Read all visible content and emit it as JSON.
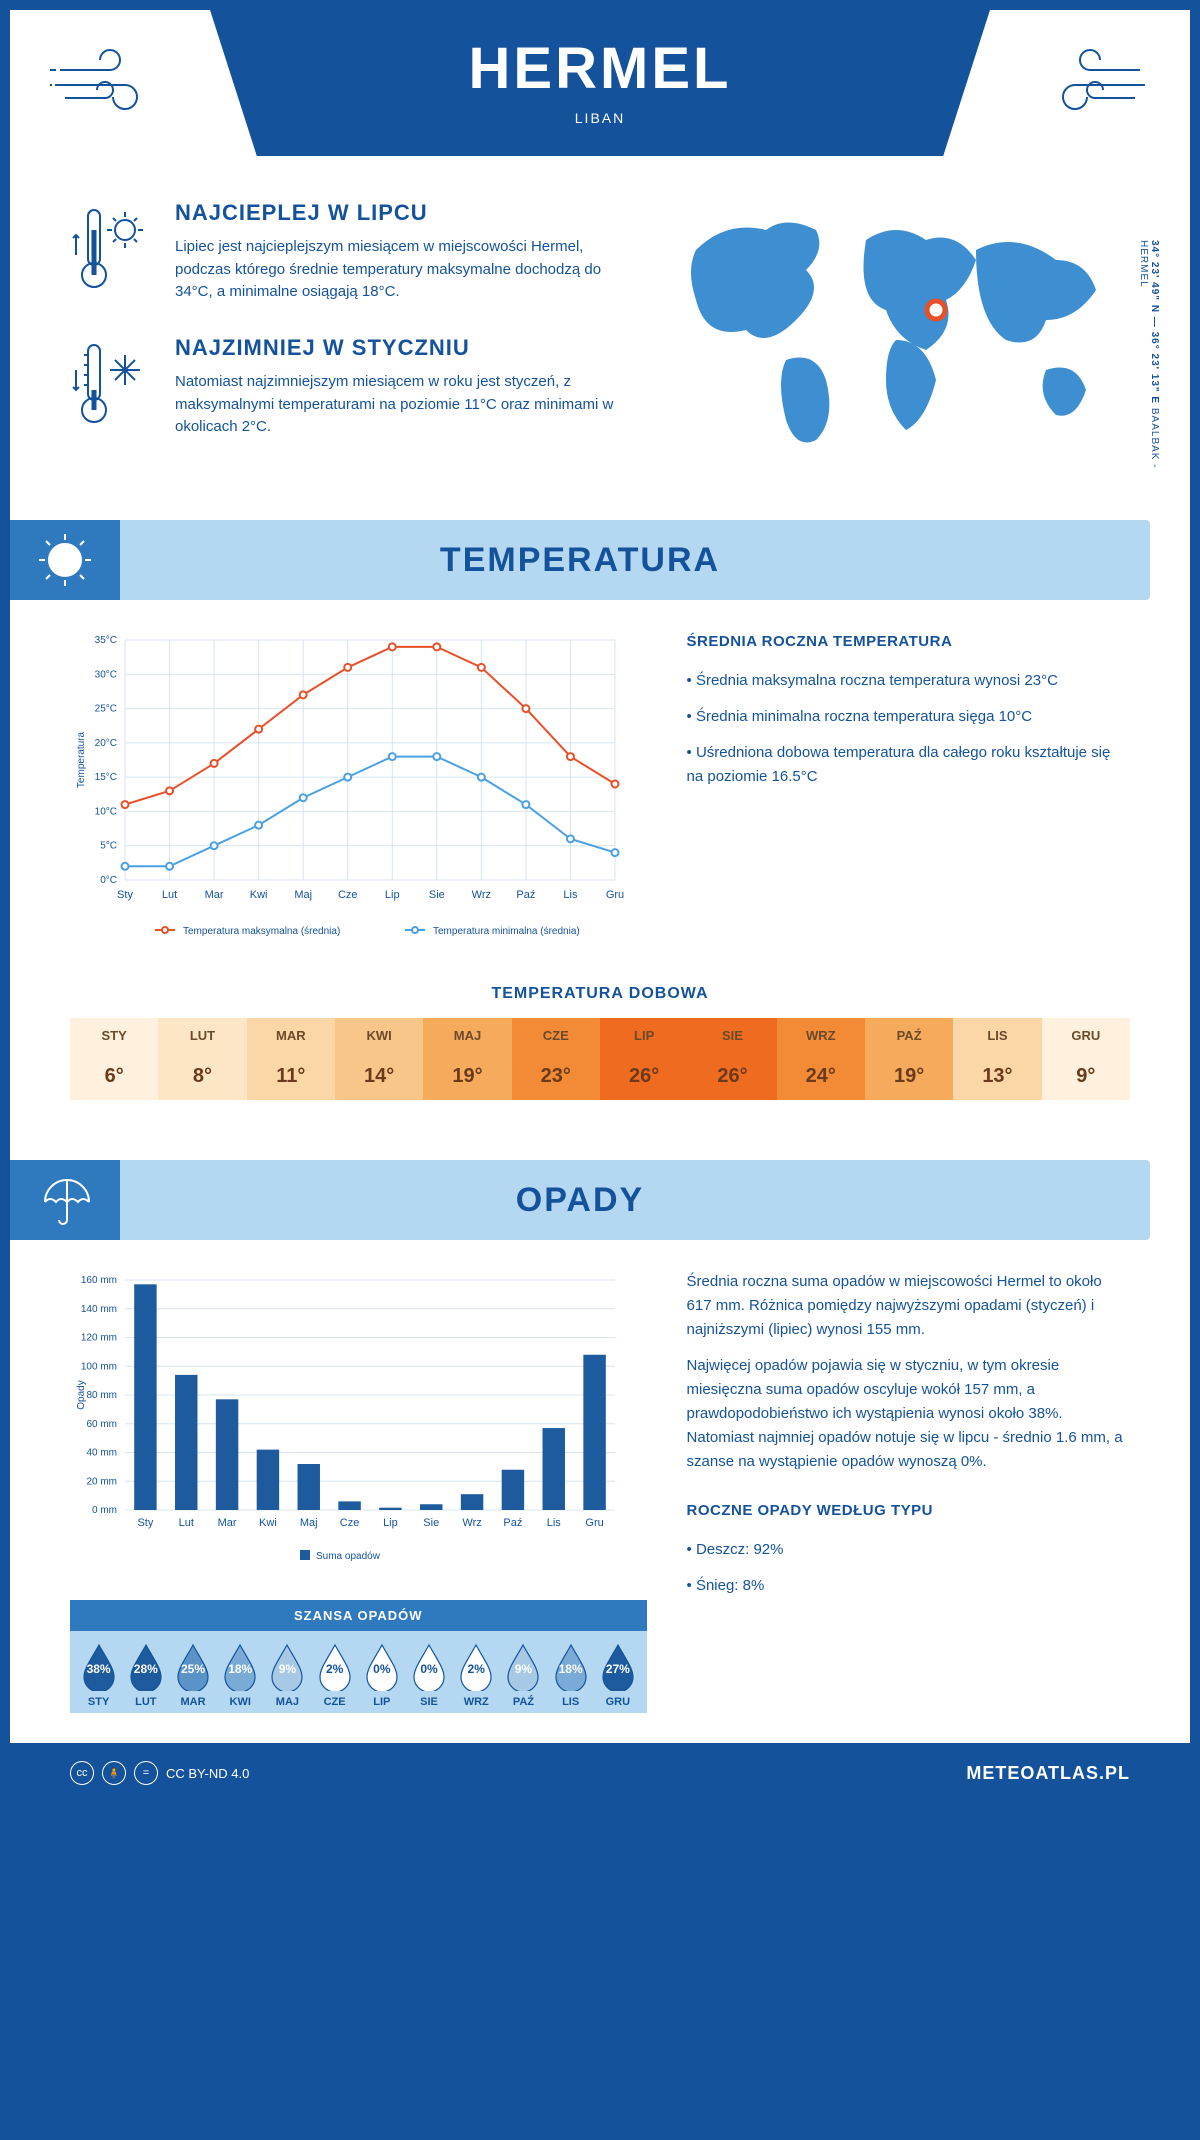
{
  "header": {
    "title": "HERMEL",
    "subtitle": "LIBAN"
  },
  "coords": {
    "line1": "34° 23' 49\" N — 36° 23' 13\" E",
    "line2": "BAALBAK - HERMEL"
  },
  "facts": {
    "hot": {
      "title": "NAJCIEPLEJ W LIPCU",
      "text": "Lipiec jest najcieplejszym miesiącem w miejscowości Hermel, podczas którego średnie temperatury maksymalne dochodzą do 34°C, a minimalne osiągają 18°C."
    },
    "cold": {
      "title": "NAJZIMNIEJ W STYCZNIU",
      "text": "Natomiast najzimniejszym miesiącem w roku jest styczeń, z maksymalnymi temperaturami na poziomie 11°C oraz minimami w okolicach 2°C."
    }
  },
  "sections": {
    "temp_title": "TEMPERATURA",
    "precip_title": "OPADY"
  },
  "temp_chart": {
    "type": "line",
    "months": [
      "Sty",
      "Lut",
      "Mar",
      "Kwi",
      "Maj",
      "Cze",
      "Lip",
      "Sie",
      "Wrz",
      "Paź",
      "Lis",
      "Gru"
    ],
    "y_label": "Temperatura",
    "ylim": [
      0,
      35
    ],
    "ytick_step": 5,
    "y_ticks": [
      "0°C",
      "5°C",
      "10°C",
      "15°C",
      "20°C",
      "25°C",
      "30°C",
      "35°C"
    ],
    "grid_color": "#d8e4f0",
    "background": "#ffffff",
    "series": [
      {
        "name": "Temperatura maksymalna (średnia)",
        "color": "#e8502a",
        "values": [
          11,
          13,
          17,
          22,
          27,
          31,
          34,
          34,
          31,
          25,
          18,
          14
        ]
      },
      {
        "name": "Temperatura minimalna (średnia)",
        "color": "#4aa0e0",
        "values": [
          2,
          2,
          5,
          8,
          12,
          15,
          18,
          18,
          15,
          11,
          6,
          4
        ]
      }
    ],
    "legend": [
      "Temperatura maksymalna (średnia)",
      "Temperatura minimalna (średnia)"
    ]
  },
  "temp_text": {
    "heading": "ŚREDNIA ROCZNA TEMPERATURA",
    "bullets": [
      "Średnia maksymalna roczna temperatura wynosi 23°C",
      "Średnia minimalna roczna temperatura sięga 10°C",
      "Uśredniona dobowa temperatura dla całego roku kształtuje się na poziomie 16.5°C"
    ]
  },
  "daily_temp": {
    "heading": "TEMPERATURA DOBOWA",
    "months": [
      "STY",
      "LUT",
      "MAR",
      "KWI",
      "MAJ",
      "CZE",
      "LIP",
      "SIE",
      "WRZ",
      "PAŹ",
      "LIS",
      "GRU"
    ],
    "values": [
      "6°",
      "8°",
      "11°",
      "14°",
      "19°",
      "23°",
      "26°",
      "26°",
      "24°",
      "19°",
      "13°",
      "9°"
    ],
    "colors": [
      "#fff1dd",
      "#fde6c6",
      "#fbd7a8",
      "#f9c689",
      "#f6ab5c",
      "#f28a36",
      "#ee6b1f",
      "#ee6b1f",
      "#f28a36",
      "#f6ab5c",
      "#fbd7a8",
      "#fff1dd"
    ]
  },
  "precip_chart": {
    "type": "bar",
    "months": [
      "Sty",
      "Lut",
      "Mar",
      "Kwi",
      "Maj",
      "Cze",
      "Lip",
      "Sie",
      "Wrz",
      "Paź",
      "Lis",
      "Gru"
    ],
    "y_label": "Opady",
    "ylim": [
      0,
      160
    ],
    "ytick_step": 20,
    "y_ticks": [
      "0 mm",
      "20 mm",
      "40 mm",
      "60 mm",
      "80 mm",
      "100 mm",
      "120 mm",
      "140 mm",
      "160 mm"
    ],
    "bar_color": "#1e5a9e",
    "grid_color": "#d8e4f0",
    "values": [
      157,
      94,
      77,
      42,
      32,
      6,
      1.6,
      4,
      11,
      28,
      57,
      108
    ],
    "legend": "Suma opadów"
  },
  "precip_text": {
    "p1": "Średnia roczna suma opadów w miejscowości Hermel to około 617 mm. Różnica pomiędzy najwyższymi opadami (styczeń) i najniższymi (lipiec) wynosi 155 mm.",
    "p2": "Najwięcej opadów pojawia się w styczniu, w tym okresie miesięczna suma opadów oscyluje wokół 157 mm, a prawdopodobieństwo ich wystąpienia wynosi około 38%. Natomiast najmniej opadów notuje się w lipcu - średnio 1.6 mm, a szanse na wystąpienie opadów wynoszą 0%.",
    "heading2": "ROCZNE OPADY WEDŁUG TYPU",
    "bullets": [
      "Deszcz: 92%",
      "Śnieg: 8%"
    ]
  },
  "rain_chance": {
    "heading": "SZANSA OPADÓW",
    "months": [
      "STY",
      "LUT",
      "MAR",
      "KWI",
      "MAJ",
      "CZE",
      "LIP",
      "SIE",
      "WRZ",
      "PAŹ",
      "LIS",
      "GRU"
    ],
    "values": [
      "38%",
      "28%",
      "25%",
      "18%",
      "9%",
      "2%",
      "0%",
      "0%",
      "2%",
      "9%",
      "18%",
      "27%"
    ],
    "fills": [
      "#1e5a9e",
      "#1e5a9e",
      "#5b93c8",
      "#7aabd6",
      "#a7c9e6",
      "#ffffff",
      "#ffffff",
      "#ffffff",
      "#ffffff",
      "#a7c9e6",
      "#7aabd6",
      "#1e5a9e"
    ],
    "text_colors": [
      "#fff",
      "#fff",
      "#fff",
      "#fff",
      "#fff",
      "#14529b",
      "#14529b",
      "#14529b",
      "#14529b",
      "#fff",
      "#fff",
      "#fff"
    ]
  },
  "footer": {
    "license": "CC BY-ND 4.0",
    "brand": "METEOATLAS.PL"
  }
}
